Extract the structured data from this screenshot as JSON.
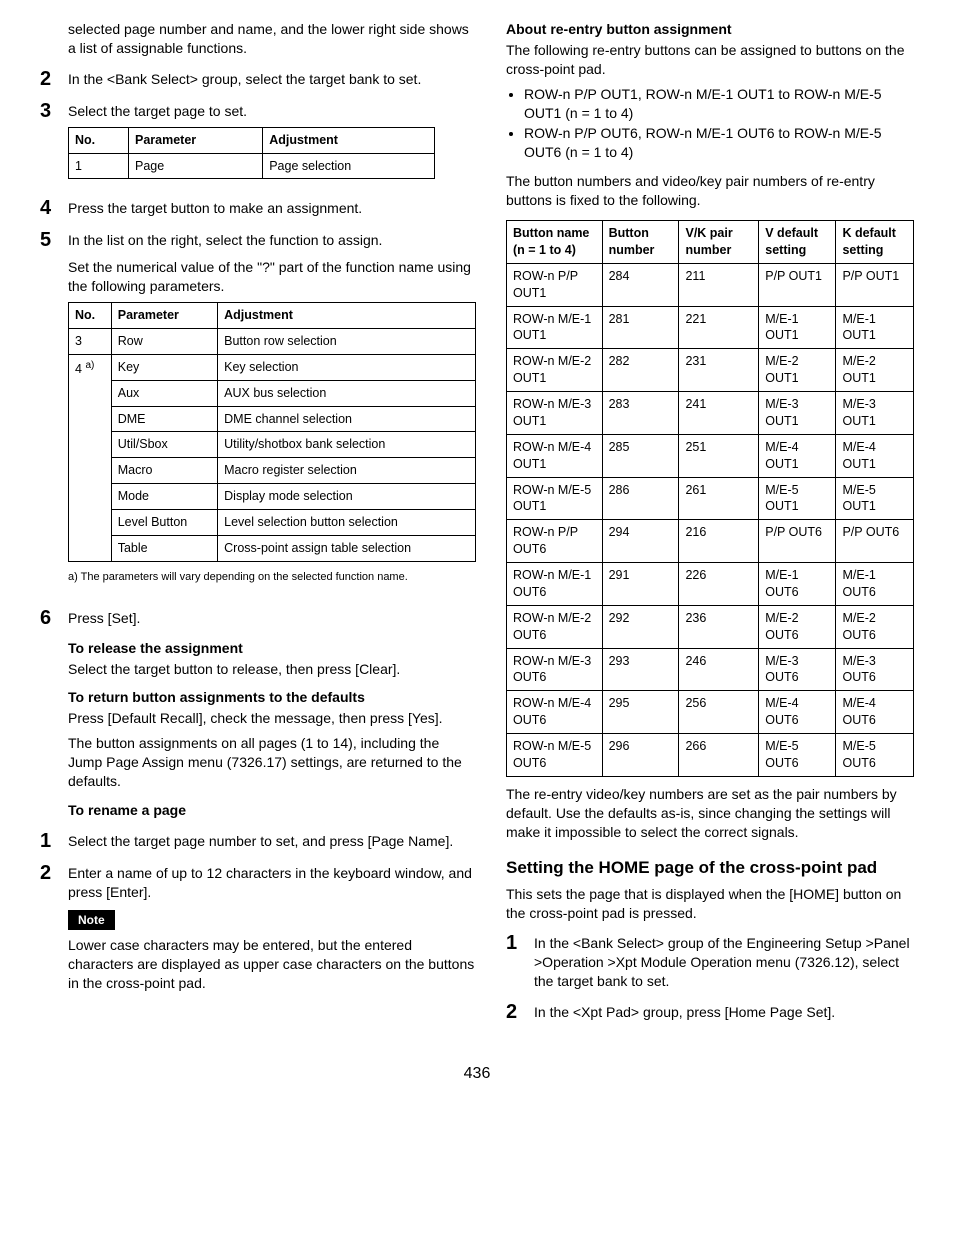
{
  "pageNumber": "436",
  "left": {
    "intro": "selected page number and name, and the lower right side shows a list of assignable functions.",
    "step2": "In the <Bank Select> group, select the target bank to set.",
    "step3": "Select the target page to set.",
    "table1": {
      "headers": [
        "No.",
        "Parameter",
        "Adjustment"
      ],
      "rows": [
        [
          "1",
          "Page",
          "Page selection"
        ]
      ]
    },
    "step4": "Press the target button to make an assignment.",
    "step5_a": "In the list on the right, select the function to assign.",
    "step5_b": "Set the numerical value of the \"?\" part of the function name using the following parameters.",
    "table2": {
      "headers": [
        "No.",
        "Parameter",
        "Adjustment"
      ],
      "row0": [
        "3",
        "Row",
        "Button row selection"
      ],
      "row1_no": "4 ",
      "row1_sup": "a)",
      "rows_merged": [
        [
          "Key",
          "Key selection"
        ],
        [
          "Aux",
          "AUX bus selection"
        ],
        [
          "DME",
          "DME channel selection"
        ],
        [
          "Util/Sbox",
          "Utility/shotbox bank selection"
        ],
        [
          "Macro",
          "Macro register selection"
        ],
        [
          "Mode",
          "Display mode selection"
        ],
        [
          "Level Button",
          "Level selection button selection"
        ],
        [
          "Table",
          "Cross-point assign table selection"
        ]
      ]
    },
    "footnote": "a) The parameters will vary depending on the selected function name.",
    "step6": "Press [Set].",
    "h_release": "To release the assignment",
    "p_release": "Select the target button to release, then press [Clear].",
    "h_return": "To return button assignments to the defaults",
    "p_return1": "Press [Default Recall], check the message, then press [Yes].",
    "p_return2": "The button assignments on all pages (1 to 14), including the Jump Page Assign menu (7326.17) settings, are returned to the defaults.",
    "h_rename": "To rename a page",
    "rename_step1": "Select the target page number to set, and press [Page Name].",
    "rename_step2": "Enter a name of up to 12 characters in the keyboard window, and press [Enter].",
    "note_label": "Note",
    "note_body": "Lower case characters may be entered, but the entered characters are displayed as upper case characters on the buttons in the cross-point pad."
  },
  "right": {
    "h_about": "About re-entry button assignment",
    "p_about": "The following re-entry buttons can be assigned to buttons on the cross-point pad.",
    "bullets": [
      "ROW-n P/P OUT1, ROW-n M/E-1 OUT1 to ROW-n M/E-5 OUT1 (n = 1 to 4)",
      "ROW-n P/P OUT6, ROW-n M/E-1 OUT6 to ROW-n M/E-5 OUT6 (n = 1 to 4)"
    ],
    "p_fixed": "The button numbers and video/key pair numbers of re-entry buttons is fixed to the following.",
    "table3": {
      "headers": [
        "Button name (n = 1 to 4)",
        "Button number",
        "V/K pair number",
        "V default setting",
        "K default setting"
      ],
      "rows": [
        [
          "ROW-n P/P OUT1",
          "284",
          "211",
          "P/P OUT1",
          "P/P OUT1"
        ],
        [
          "ROW-n M/E-1 OUT1",
          "281",
          "221",
          "M/E-1 OUT1",
          "M/E-1 OUT1"
        ],
        [
          "ROW-n M/E-2 OUT1",
          "282",
          "231",
          "M/E-2 OUT1",
          "M/E-2 OUT1"
        ],
        [
          "ROW-n M/E-3 OUT1",
          "283",
          "241",
          "M/E-3 OUT1",
          "M/E-3 OUT1"
        ],
        [
          "ROW-n M/E-4 OUT1",
          "285",
          "251",
          "M/E-4 OUT1",
          "M/E-4 OUT1"
        ],
        [
          "ROW-n M/E-5 OUT1",
          "286",
          "261",
          "M/E-5 OUT1",
          "M/E-5 OUT1"
        ],
        [
          "ROW-n P/P OUT6",
          "294",
          "216",
          "P/P OUT6",
          "P/P OUT6"
        ],
        [
          "ROW-n M/E-1 OUT6",
          "291",
          "226",
          "M/E-1 OUT6",
          "M/E-1 OUT6"
        ],
        [
          "ROW-n M/E-2 OUT6",
          "292",
          "236",
          "M/E-2 OUT6",
          "M/E-2 OUT6"
        ],
        [
          "ROW-n M/E-3 OUT6",
          "293",
          "246",
          "M/E-3 OUT6",
          "M/E-3 OUT6"
        ],
        [
          "ROW-n M/E-4 OUT6",
          "295",
          "256",
          "M/E-4 OUT6",
          "M/E-4 OUT6"
        ],
        [
          "ROW-n M/E-5 OUT6",
          "296",
          "266",
          "M/E-5 OUT6",
          "M/E-5 OUT6"
        ]
      ]
    },
    "p_defaults": "The re-entry video/key numbers are set as the pair numbers by default. Use the defaults as-is, since changing the settings will make it impossible to select the correct signals.",
    "h_home": "Setting the HOME page of the cross-point pad",
    "p_home": "This sets the page that is displayed when the [HOME] button on the cross-point pad is pressed.",
    "home_step1": "In the <Bank Select> group of the Engineering Setup >Panel >Operation >Xpt Module Operation menu (7326.12), select the target bank to set.",
    "home_step2": "In the <Xpt Pad> group, press [Home Page Set]."
  }
}
